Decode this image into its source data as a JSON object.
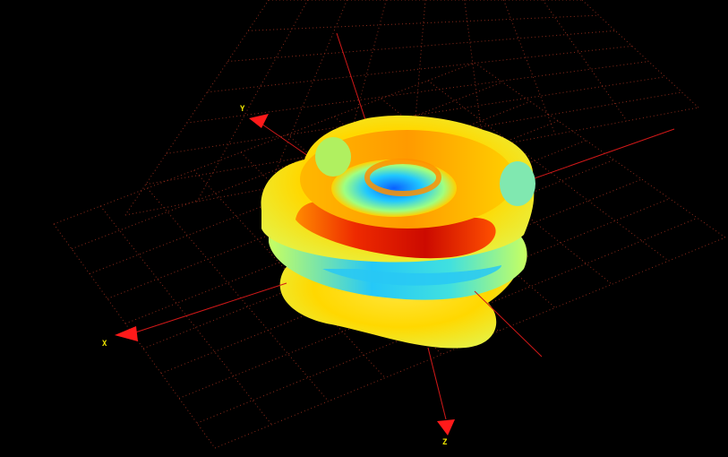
{
  "viewport": {
    "background": "#000000",
    "grid_color": "#8a2a1a",
    "axis_color": "#d01818",
    "arrow_color": "#ff1a1a",
    "label_color": "#e8e000"
  },
  "axes": {
    "x_label": "X",
    "y_label": "Y",
    "z_label": "Z"
  },
  "surface": {
    "colormap": [
      "#1a7cff",
      "#25d0f0",
      "#b8ff60",
      "#ffff00",
      "#ffb000",
      "#ff3000",
      "#c00000"
    ]
  }
}
